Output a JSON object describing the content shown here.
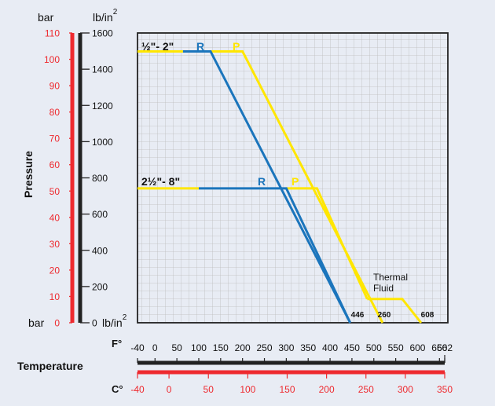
{
  "colors": {
    "background": "#e8ecf4",
    "plot_bg": "#e0e0e0",
    "bar_axis": "#ee2a2f",
    "psi_axis": "#222222",
    "celsius_axis": "#ee2a2f",
    "fahrenheit_axis": "#222222",
    "series_R": "#1b75bc",
    "series_P": "#ffe600",
    "label_R": "#1b75bc",
    "label_P": "#ffe600"
  },
  "chart_data": {
    "type": "line",
    "title": "",
    "ylabel": "Pressure",
    "xlabel": "Temperature",
    "axes": {
      "bar": {
        "unit_top": "bar",
        "unit_bottom": "bar",
        "ticks": [
          0,
          10,
          20,
          30,
          40,
          50,
          60,
          70,
          80,
          90,
          100,
          110
        ],
        "range": [
          0,
          110
        ]
      },
      "psi": {
        "unit_top": "lb/in",
        "unit_top_sup": "2",
        "unit_bottom": "lb/in",
        "unit_bottom_sup": "2",
        "ticks": [
          0,
          200,
          400,
          600,
          800,
          1000,
          1200,
          1400,
          1600
        ],
        "range": [
          0,
          1600
        ]
      },
      "fahrenheit": {
        "unit": "F°",
        "ticks": [
          -40,
          0,
          50,
          100,
          150,
          200,
          250,
          300,
          350,
          400,
          450,
          500,
          550,
          600,
          650,
          662
        ],
        "range": [
          -40,
          662
        ]
      },
      "celsius": {
        "unit": "C°",
        "ticks": [
          -40,
          0,
          50,
          100,
          150,
          200,
          250,
          300,
          350
        ],
        "range": [
          -40,
          350
        ]
      }
    },
    "series": [
      {
        "id": "small_R",
        "name": "R",
        "color_key": "series_R",
        "points": [
          [
            64,
            103
          ],
          [
            127,
            103
          ],
          [
            446,
            0
          ]
        ]
      },
      {
        "id": "small_P",
        "name": "P",
        "color_key": "series_P",
        "points": [
          [
            -40,
            103
          ],
          [
            64,
            103
          ]
        ]
      },
      {
        "id": "small_P2",
        "name": "P",
        "color_key": "series_P",
        "points": [
          [
            127,
            103
          ],
          [
            200,
            103
          ],
          [
            520,
            0
          ]
        ]
      },
      {
        "id": "large_R",
        "name": "R",
        "color_key": "series_R",
        "points": [
          [
            100,
            51
          ],
          [
            300,
            51
          ],
          [
            446,
            0
          ]
        ]
      },
      {
        "id": "large_P",
        "name": "P",
        "color_key": "series_P",
        "points": [
          [
            -40,
            51
          ],
          [
            100,
            51
          ]
        ]
      },
      {
        "id": "large_P2",
        "name": "P",
        "color_key": "series_P",
        "points": [
          [
            300,
            51
          ],
          [
            370,
            51
          ],
          [
            485,
            9
          ]
        ]
      },
      {
        "id": "thermal",
        "name": "P",
        "color_key": "series_P",
        "points": [
          [
            485,
            9
          ],
          [
            565,
            9
          ],
          [
            608,
            0
          ]
        ]
      }
    ],
    "annotations": {
      "size_small": "½\"- 2\"",
      "size_large": "2½\"- 8\"",
      "r_label": "R",
      "p_label": "P",
      "thermal_line1": "Thermal",
      "thermal_line2": "Fluid",
      "end_446": "446",
      "end_260": "260",
      "end_608": "608"
    },
    "grid": true
  }
}
